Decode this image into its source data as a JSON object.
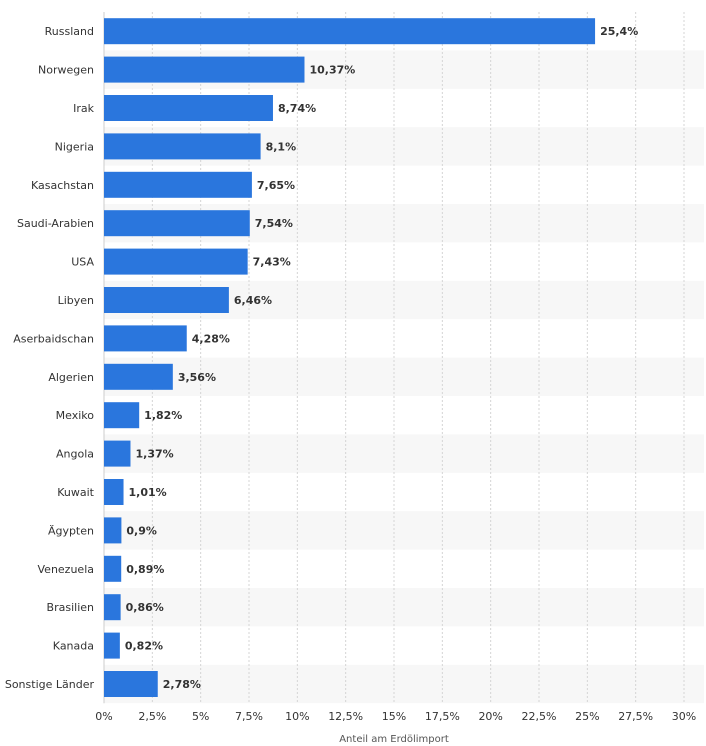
{
  "chart_data": {
    "type": "bar",
    "orientation": "horizontal",
    "categories": [
      "Russland",
      "Norwegen",
      "Irak",
      "Nigeria",
      "Kasachstan",
      "Saudi-Arabien",
      "USA",
      "Libyen",
      "Aserbaidschan",
      "Algerien",
      "Mexiko",
      "Angola",
      "Kuwait",
      "Ägypten",
      "Venezuela",
      "Brasilien",
      "Kanada",
      "Sonstige Länder"
    ],
    "values": [
      25.4,
      10.37,
      8.74,
      8.1,
      7.65,
      7.54,
      7.43,
      6.46,
      4.28,
      3.56,
      1.82,
      1.37,
      1.01,
      0.9,
      0.89,
      0.86,
      0.82,
      2.78
    ],
    "value_labels": [
      "25,4%",
      "10,37%",
      "8,74%",
      "8,1%",
      "7,65%",
      "7,54%",
      "7,43%",
      "6,46%",
      "4,28%",
      "3,56%",
      "1,82%",
      "1,37%",
      "1,01%",
      "0,9%",
      "0,89%",
      "0,86%",
      "0,82%",
      "2,78%"
    ],
    "xlabel": "Anteil am Erdölimport",
    "ylabel": "",
    "xlim": [
      0,
      30
    ],
    "xticks": [
      0,
      2.5,
      5,
      7.5,
      10,
      12.5,
      15,
      17.5,
      20,
      22.5,
      25,
      27.5,
      30
    ],
    "xtick_labels": [
      "0%",
      "2,5%",
      "5%",
      "7,5%",
      "10%",
      "12,5%",
      "15%",
      "17,5%",
      "20%",
      "22,5%",
      "25%",
      "27,5%",
      "30%"
    ],
    "grid": true,
    "legend": "none",
    "bar_color": "#2a76dd",
    "band_color": "#f7f7f7"
  }
}
